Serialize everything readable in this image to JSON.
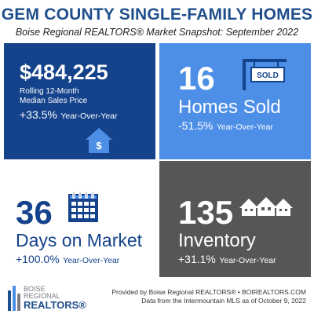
{
  "header": {
    "title": "GEM COUNTY SINGLE-FAMILY HOMES",
    "subtitle": "Boise Regional REALTORS® Market Snapshot: September 2022"
  },
  "tiles": [
    {
      "value": "$484,225",
      "line1": "Rolling 12-Month",
      "line2": "Median Sales Price",
      "change": "+33.5%",
      "change_label": "Year-Over-Year",
      "icon": "house-dollar-icon",
      "bg": "#14428b"
    },
    {
      "value": "16",
      "label": "Homes Sold",
      "change": "-51.5%",
      "change_label": "Year-Over-Year",
      "icon": "sold-sign-icon",
      "sign_text": "SOLD",
      "bg": "#4d8fe6"
    },
    {
      "value": "36",
      "label": "Days on Market",
      "change": "+100.0%",
      "change_label": "Year-Over-Year",
      "icon": "calendar-icon",
      "bg": "#ffffff"
    },
    {
      "value": "135",
      "label": "Inventory",
      "change": "+31.1%",
      "change_label": "Year-Over-Year",
      "icon": "houses-icon",
      "bg": "#555658"
    }
  ],
  "footer": {
    "logo": {
      "line1": "BOISE",
      "line2": "REGIONAL",
      "line3": "REALTORS®"
    },
    "credit_line1": "Provided by Boise Regional REALTORS® • BOIREALTORS.COM",
    "credit_line2": "Data from the Intermountain MLS as of October 9, 2022"
  }
}
